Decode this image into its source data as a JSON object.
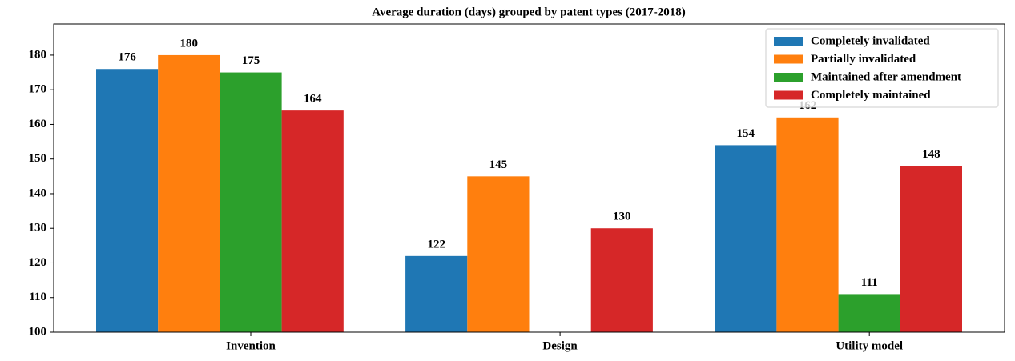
{
  "chart_data": {
    "type": "bar",
    "title": "Average duration (days) grouped by patent types (2017-2018)",
    "categories": [
      "Invention",
      "Design",
      "Utility model"
    ],
    "series": [
      {
        "name": "Completely invalidated",
        "color": "#1f77b4",
        "values": [
          176,
          122,
          154
        ]
      },
      {
        "name": "Partially invalidated",
        "color": "#ff7f0e",
        "values": [
          180,
          145,
          162
        ]
      },
      {
        "name": "Maintained after amendment",
        "color": "#2ca02c",
        "values": [
          175,
          null,
          111
        ]
      },
      {
        "name": "Completely maintained",
        "color": "#d62728",
        "values": [
          164,
          130,
          148
        ]
      }
    ],
    "ylim": [
      100,
      189
    ],
    "yticks": [
      100,
      110,
      120,
      130,
      140,
      150,
      160,
      170,
      180
    ],
    "legend": "upper right",
    "data_labels": true
  }
}
